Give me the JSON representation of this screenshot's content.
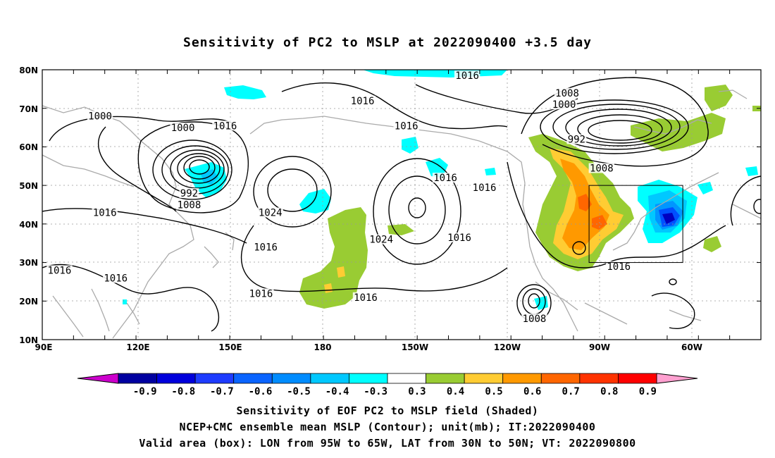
{
  "title": "Sensitivity of PC2 to MSLP at 2022090400 +3.5 day",
  "map": {
    "lat_labels": [
      "80N",
      "70N",
      "60N",
      "50N",
      "40N",
      "30N",
      "20N",
      "10N"
    ],
    "lon_labels": [
      "90E",
      "120E",
      "150E",
      "180",
      "150W",
      "120W",
      "90W",
      "60W"
    ],
    "lon_range": [
      "90E",
      "40W"
    ],
    "lat_range": [
      "10N",
      "80N"
    ],
    "grid": "dotted",
    "contour_labels": [
      {
        "text": "1016",
        "lon": 226,
        "lat": 78.5
      },
      {
        "text": "1008",
        "lon": 258,
        "lat": 74
      },
      {
        "text": "1000",
        "lon": 257,
        "lat": 71
      },
      {
        "text": "992",
        "lon": 261,
        "lat": 62
      },
      {
        "text": "1008",
        "lon": 269,
        "lat": 54.5
      },
      {
        "text": "1016",
        "lon": 192.5,
        "lat": 72
      },
      {
        "text": "1016",
        "lon": 206.5,
        "lat": 65.5
      },
      {
        "text": "1016",
        "lon": 219,
        "lat": 52
      },
      {
        "text": "1016",
        "lon": 231.5,
        "lat": 49.5
      },
      {
        "text": "1016",
        "lon": 148.5,
        "lat": 65.5
      },
      {
        "text": "1016",
        "lon": 223.5,
        "lat": 36.5
      },
      {
        "text": "1016",
        "lon": 274.5,
        "lat": 29
      },
      {
        "text": "1000",
        "lon": 108.5,
        "lat": 68
      },
      {
        "text": "1000",
        "lon": 135,
        "lat": 65
      },
      {
        "text": "992",
        "lon": 137,
        "lat": 48
      },
      {
        "text": "1008",
        "lon": 137,
        "lat": 45
      },
      {
        "text": "1016",
        "lon": 110,
        "lat": 43
      },
      {
        "text": "1024",
        "lon": 163,
        "lat": 43
      },
      {
        "text": "1016",
        "lon": 161.5,
        "lat": 34
      },
      {
        "text": "1024",
        "lon": 198.5,
        "lat": 36
      },
      {
        "text": "1016",
        "lon": 95.5,
        "lat": 28
      },
      {
        "text": "1016",
        "lon": 113.5,
        "lat": 26
      },
      {
        "text": "1016",
        "lon": 160,
        "lat": 22
      },
      {
        "text": "1016",
        "lon": 193.5,
        "lat": 21
      },
      {
        "text": "1008",
        "lon": 247.5,
        "lat": 15.5
      }
    ],
    "valid_box": {
      "lon_min": 265,
      "lon_max": 295,
      "lat_min": 30,
      "lat_max": 50
    },
    "colors": {
      "cyan": "#00ffff",
      "light_blue": "#00c8ff",
      "mid_blue": "#0096ff",
      "blue": "#0050ff",
      "dark_blue": "#0000c0",
      "green": "#99cc33",
      "yellow": "#ffcc33",
      "orange": "#ff9900",
      "dark_orange": "#ff6600",
      "red": "#ff3300",
      "coast": "#aaaaaa"
    }
  },
  "colorbar": {
    "labels": [
      "-0.9",
      "-0.8",
      "-0.7",
      "-0.6",
      "-0.5",
      "-0.4",
      "-0.3",
      "0.3",
      "0.4",
      "0.5",
      "0.6",
      "0.7",
      "0.8",
      "0.9"
    ],
    "colors": [
      "#0000a0",
      "#0000dc",
      "#1e3cff",
      "#0a64ff",
      "#008cff",
      "#00c8ff",
      "#00ffff",
      "#ffffff",
      "#99cc33",
      "#ffcc33",
      "#ff9900",
      "#ff6600",
      "#ff3300",
      "#ff0000"
    ],
    "low_end_color": "#cc00cc",
    "high_end_color": "#ffa0d0"
  },
  "captions": [
    "Sensitivity of EOF PC2 to MSLP field (Shaded)",
    "NCEP+CMC ensemble mean MSLP (Contour); unit(mb); IT:2022090400",
    "Valid area (box): LON from 95W to 65W, LAT from 30N to 50N; VT: 2022090800"
  ]
}
